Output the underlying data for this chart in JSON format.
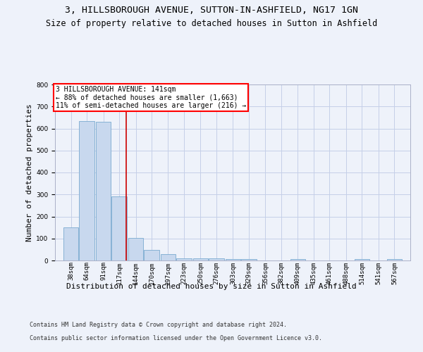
{
  "title_line1": "3, HILLSBOROUGH AVENUE, SUTTON-IN-ASHFIELD, NG17 1GN",
  "title_line2": "Size of property relative to detached houses in Sutton in Ashfield",
  "xlabel": "Distribution of detached houses by size in Sutton in Ashfield",
  "ylabel": "Number of detached properties",
  "footnote1": "Contains HM Land Registry data © Crown copyright and database right 2024.",
  "footnote2": "Contains public sector information licensed under the Open Government Licence v3.0.",
  "annotation_line1": "3 HILLSBOROUGH AVENUE: 141sqm",
  "annotation_line2": "← 88% of detached houses are smaller (1,663)",
  "annotation_line3": "11% of semi-detached houses are larger (216) →",
  "bar_color": "#c8d8ee",
  "bar_edge_color": "#7aaad0",
  "redline_color": "#cc0000",
  "redline_x": 141,
  "categories": [
    "38sqm",
    "64sqm",
    "91sqm",
    "117sqm",
    "144sqm",
    "170sqm",
    "197sqm",
    "223sqm",
    "250sqm",
    "276sqm",
    "303sqm",
    "329sqm",
    "356sqm",
    "382sqm",
    "409sqm",
    "435sqm",
    "461sqm",
    "488sqm",
    "514sqm",
    "541sqm",
    "567sqm"
  ],
  "bin_starts": [
    38,
    64,
    91,
    117,
    144,
    170,
    197,
    223,
    250,
    276,
    303,
    329,
    356,
    382,
    409,
    435,
    461,
    488,
    514,
    541,
    567
  ],
  "values": [
    150,
    633,
    630,
    290,
    103,
    47,
    30,
    10,
    10,
    10,
    5,
    5,
    0,
    0,
    5,
    0,
    0,
    0,
    5,
    0,
    5
  ],
  "ylim": [
    0,
    800
  ],
  "yticks": [
    0,
    100,
    200,
    300,
    400,
    500,
    600,
    700,
    800
  ],
  "background_color": "#eef2fa",
  "grid_color": "#c5cfe8",
  "title_fontsize": 9.5,
  "subtitle_fontsize": 8.5,
  "ylabel_fontsize": 8,
  "xlabel_fontsize": 8,
  "tick_fontsize": 6.5,
  "annotation_fontsize": 7,
  "footnote_fontsize": 6
}
